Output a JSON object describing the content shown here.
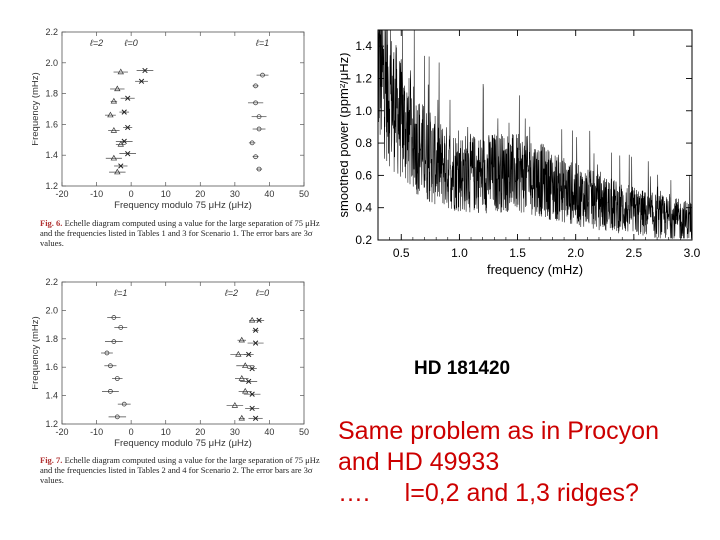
{
  "chart_data": [
    {
      "type": "scatter",
      "xlabel": "Frequency modulo 75 μHz (μHz)",
      "ylabel": "Frequency (mHz)",
      "xlim": [
        -20,
        50
      ],
      "ylim": [
        1.2,
        2.2
      ],
      "xticks": [
        "-20",
        "-10",
        "0",
        "10",
        "20",
        "30",
        "40",
        "50"
      ],
      "yticks": [
        "1.2",
        "1.4",
        "1.6",
        "1.8",
        "2.0",
        "2.2"
      ],
      "ridge_labels": [
        "ℓ=2",
        "ℓ=0",
        "ℓ=1"
      ],
      "series": [
        {
          "marker": "triangle",
          "points": [
            [
              -3,
              1.94
            ],
            [
              -4,
              1.83
            ],
            [
              -5,
              1.75
            ],
            [
              -6,
              1.66
            ],
            [
              -5,
              1.56
            ],
            [
              -3,
              1.47
            ],
            [
              -5,
              1.38
            ],
            [
              -4,
              1.29
            ]
          ]
        },
        {
          "marker": "cross",
          "points": [
            [
              4,
              1.95
            ],
            [
              3,
              1.88
            ],
            [
              -1,
              1.77
            ],
            [
              -2,
              1.68
            ],
            [
              -1,
              1.58
            ],
            [
              -2,
              1.49
            ],
            [
              -1,
              1.41
            ],
            [
              -3,
              1.33
            ]
          ]
        },
        {
          "marker": "circle",
          "points": [
            [
              38,
              1.92
            ],
            [
              36,
              1.85
            ],
            [
              36,
              1.74
            ],
            [
              37,
              1.65
            ],
            [
              37,
              1.57
            ],
            [
              35,
              1.48
            ],
            [
              36,
              1.39
            ],
            [
              37,
              1.31
            ]
          ]
        }
      ],
      "caption_label": "Fig. 6.",
      "caption": "Echelle diagram computed using a value for the large separation of 75 μHz and the frequencies listed in Tables 1 and 3 for Scenario 1. The error bars are 3σ values."
    },
    {
      "type": "line",
      "xlabel": "frequency (mHz)",
      "ylabel": "smoothed power (ppm²/μHz)",
      "xlim": [
        0.3,
        3.0
      ],
      "ylim": [
        0.2,
        1.5
      ],
      "xticks": [
        "0.5",
        "1.0",
        "1.5",
        "2.0",
        "2.5",
        "3.0"
      ],
      "yticks": [
        "0.2",
        "0.4",
        "0.6",
        "0.8",
        "1.0",
        "1.2",
        "1.4"
      ],
      "envelope_x": [
        0.3,
        0.4,
        0.5,
        0.6,
        0.7,
        0.8,
        0.9,
        1.0,
        1.1,
        1.2,
        1.3,
        1.4,
        1.5,
        1.6,
        1.7,
        1.8,
        2.0,
        2.2,
        2.4,
        2.6,
        2.8,
        3.0
      ],
      "envelope_y": [
        1.38,
        1.18,
        1.02,
        0.9,
        0.8,
        0.74,
        0.7,
        0.67,
        0.66,
        0.66,
        0.67,
        0.67,
        0.66,
        0.65,
        0.62,
        0.58,
        0.52,
        0.47,
        0.43,
        0.39,
        0.36,
        0.34
      ]
    },
    {
      "type": "scatter",
      "xlabel": "Frequency modulo 75 μHz (μHz)",
      "ylabel": "Frequency (mHz)",
      "xlim": [
        -20,
        50
      ],
      "ylim": [
        1.2,
        2.2
      ],
      "xticks": [
        "-20",
        "-10",
        "0",
        "10",
        "20",
        "30",
        "40",
        "50"
      ],
      "yticks": [
        "1.2",
        "1.4",
        "1.6",
        "1.8",
        "2.0",
        "2.2"
      ],
      "ridge_labels": [
        "ℓ=1",
        "ℓ=2",
        "ℓ=0"
      ],
      "series": [
        {
          "marker": "circle",
          "points": [
            [
              -5,
              1.95
            ],
            [
              -3,
              1.88
            ],
            [
              -5,
              1.78
            ],
            [
              -7,
              1.7
            ],
            [
              -6,
              1.61
            ],
            [
              -4,
              1.52
            ],
            [
              -6,
              1.43
            ],
            [
              -2,
              1.34
            ],
            [
              -4,
              1.25
            ]
          ]
        },
        {
          "marker": "triangle",
          "points": [
            [
              35,
              1.93
            ],
            [
              32,
              1.79
            ],
            [
              31,
              1.69
            ],
            [
              33,
              1.61
            ],
            [
              32,
              1.52
            ],
            [
              33,
              1.43
            ],
            [
              30,
              1.33
            ],
            [
              32,
              1.24
            ]
          ]
        },
        {
          "marker": "cross",
          "points": [
            [
              37,
              1.93
            ],
            [
              36,
              1.86
            ],
            [
              36,
              1.77
            ],
            [
              34,
              1.69
            ],
            [
              35,
              1.59
            ],
            [
              34,
              1.5
            ],
            [
              35,
              1.41
            ],
            [
              35,
              1.31
            ],
            [
              36,
              1.24
            ]
          ]
        }
      ],
      "caption_label": "Fig. 7.",
      "caption": "Echelle diagram computed using a value for the large separation of 75 μHz and the frequencies listed in Tables 2 and 4 for Scenario 2. The error bars are 3σ values."
    }
  ],
  "target_name": "HD 181420",
  "comment_lines": [
    "Same problem as in Procyon",
    "and HD 49933",
    "….     l=0,2 and 1,3 ridges?"
  ]
}
